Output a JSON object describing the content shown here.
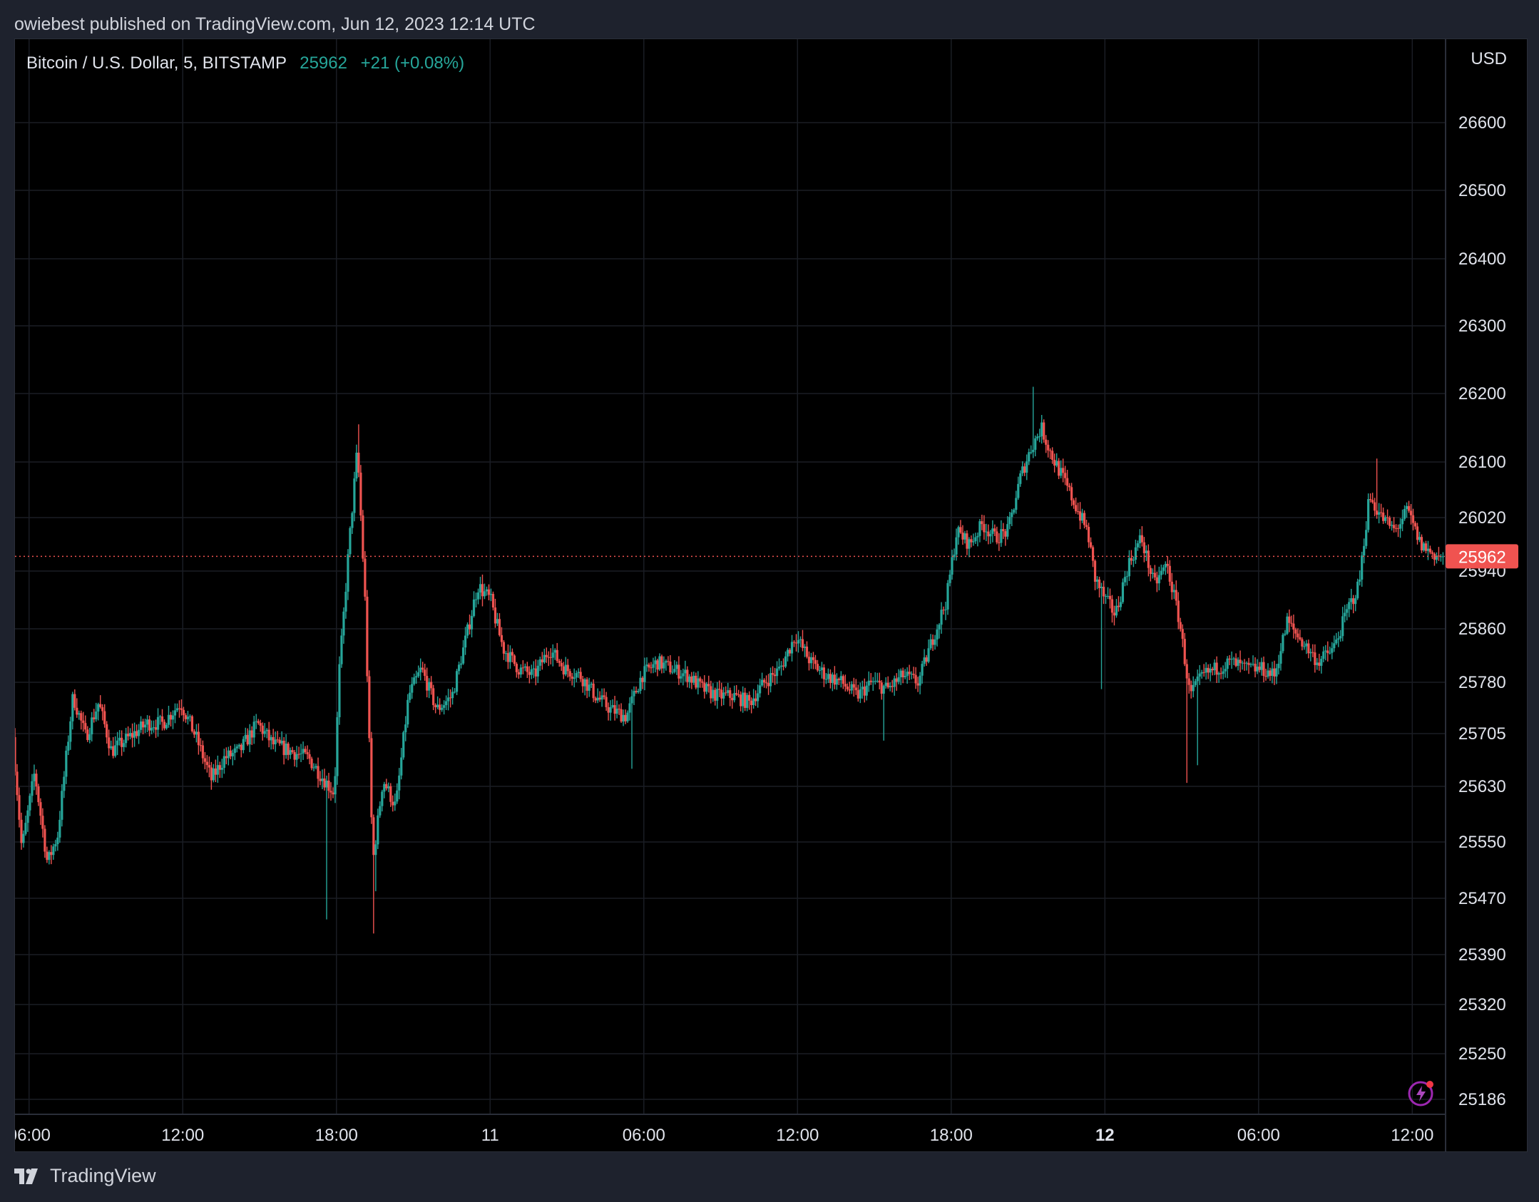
{
  "header": {
    "text": "owiebest published on TradingView.com, Jun 12, 2023 12:14 UTC"
  },
  "legend": {
    "symbol": "Bitcoin / U.S. Dollar, 5, BITSTAMP",
    "last": "25962",
    "change": "+21 (+0.08%)"
  },
  "price_axis": {
    "currency": "USD"
  },
  "footer": {
    "brand": "TradingView"
  },
  "icons": {
    "logo": "tradingview-logo-icon",
    "lightning": "lightning-icon"
  },
  "colors": {
    "up": "#26a69a",
    "down": "#ef5350",
    "background": "#000000",
    "panel": "#1e222d",
    "grid": "#1a1d24",
    "last_price_badge": "#f05350"
  },
  "chart_data": {
    "type": "candlestick",
    "title": "Bitcoin / U.S. Dollar, 5, BITSTAMP",
    "interval_minutes": 5,
    "last_price": 25962,
    "ylim": [
      25160,
      26700
    ],
    "y_ticks": [
      26600,
      26500,
      26400,
      26300,
      26200,
      26100,
      26020,
      25940,
      25860,
      25780,
      25705,
      25630,
      25550,
      25470,
      25390,
      25320,
      25250,
      25186
    ],
    "x_ticks": [
      {
        "label": "06:00",
        "t": 0
      },
      {
        "label": "12:00",
        "t": 6
      },
      {
        "label": "18:00",
        "t": 12
      },
      {
        "label": "11",
        "t": 18
      },
      {
        "label": "06:00",
        "t": 24
      },
      {
        "label": "12:00",
        "t": 30
      },
      {
        "label": "18:00",
        "t": 36
      },
      {
        "label": "12",
        "t": 42,
        "bold": true
      },
      {
        "label": "06:00",
        "t": 48
      },
      {
        "label": "12:00",
        "t": 54
      }
    ],
    "x_range_hours": [
      -0.55,
      55.3
    ],
    "price_path": [
      [
        -0.55,
        25700
      ],
      [
        -0.2,
        25540
      ],
      [
        0.3,
        25650
      ],
      [
        0.8,
        25520
      ],
      [
        1.2,
        25560
      ],
      [
        1.8,
        25760
      ],
      [
        2.3,
        25700
      ],
      [
        2.8,
        25750
      ],
      [
        3.3,
        25680
      ],
      [
        4,
        25700
      ],
      [
        4.7,
        25720
      ],
      [
        5.3,
        25720
      ],
      [
        6,
        25750
      ],
      [
        6.6,
        25700
      ],
      [
        7.2,
        25640
      ],
      [
        7.7,
        25670
      ],
      [
        8.3,
        25680
      ],
      [
        9,
        25720
      ],
      [
        9.6,
        25690
      ],
      [
        10.3,
        25680
      ],
      [
        11,
        25670
      ],
      [
        11.6,
        25640
      ],
      [
        12,
        25620
      ],
      [
        12.2,
        25800
      ],
      [
        12.6,
        25990
      ],
      [
        12.9,
        26120
      ],
      [
        13.2,
        25900
      ],
      [
        13.5,
        25520
      ],
      [
        13.9,
        25640
      ],
      [
        14.4,
        25600
      ],
      [
        14.9,
        25760
      ],
      [
        15.4,
        25800
      ],
      [
        16,
        25740
      ],
      [
        16.6,
        25760
      ],
      [
        17.1,
        25840
      ],
      [
        17.6,
        25920
      ],
      [
        18.1,
        25900
      ],
      [
        18.6,
        25830
      ],
      [
        19.2,
        25800
      ],
      [
        19.8,
        25790
      ],
      [
        20.4,
        25830
      ],
      [
        21,
        25800
      ],
      [
        21.6,
        25790
      ],
      [
        22.2,
        25760
      ],
      [
        22.8,
        25740
      ],
      [
        23.4,
        25730
      ],
      [
        24,
        25790
      ],
      [
        24.6,
        25810
      ],
      [
        25.2,
        25800
      ],
      [
        25.8,
        25790
      ],
      [
        26.4,
        25770
      ],
      [
        27,
        25760
      ],
      [
        27.6,
        25760
      ],
      [
        28.2,
        25750
      ],
      [
        28.8,
        25780
      ],
      [
        29.4,
        25800
      ],
      [
        30,
        25850
      ],
      [
        30.6,
        25810
      ],
      [
        31.2,
        25790
      ],
      [
        31.8,
        25780
      ],
      [
        32.4,
        25760
      ],
      [
        33,
        25780
      ],
      [
        33.6,
        25770
      ],
      [
        34.2,
        25790
      ],
      [
        34.8,
        25780
      ],
      [
        35.4,
        25850
      ],
      [
        35.9,
        25900
      ],
      [
        36.3,
        26000
      ],
      [
        36.8,
        25980
      ],
      [
        37.3,
        26010
      ],
      [
        37.8,
        25990
      ],
      [
        38.3,
        26000
      ],
      [
        38.8,
        26080
      ],
      [
        39.2,
        26120
      ],
      [
        39.6,
        26150
      ],
      [
        40,
        26110
      ],
      [
        40.4,
        26080
      ],
      [
        40.9,
        26040
      ],
      [
        41.4,
        26000
      ],
      [
        41.7,
        25930
      ],
      [
        42.1,
        25900
      ],
      [
        42.5,
        25880
      ],
      [
        43,
        25950
      ],
      [
        43.5,
        25990
      ],
      [
        44,
        25920
      ],
      [
        44.5,
        25950
      ],
      [
        45,
        25870
      ],
      [
        45.4,
        25760
      ],
      [
        45.9,
        25790
      ],
      [
        46.4,
        25800
      ],
      [
        47,
        25810
      ],
      [
        47.6,
        25800
      ],
      [
        48.2,
        25800
      ],
      [
        48.7,
        25790
      ],
      [
        49.2,
        25870
      ],
      [
        49.8,
        25840
      ],
      [
        50.4,
        25810
      ],
      [
        51,
        25830
      ],
      [
        51.6,
        25890
      ],
      [
        52,
        25920
      ],
      [
        52.4,
        26050
      ],
      [
        52.9,
        26020
      ],
      [
        53.4,
        26000
      ],
      [
        53.9,
        26030
      ],
      [
        54.4,
        25980
      ],
      [
        54.9,
        25965
      ],
      [
        55.2,
        25962
      ]
    ],
    "spikes": [
      {
        "t": 11.6,
        "low": 25440
      },
      {
        "t": 12.85,
        "high": 26155
      },
      {
        "t": 13.45,
        "low": 25420
      },
      {
        "t": 13.55,
        "low": 25480
      },
      {
        "t": 23.5,
        "low": 25655
      },
      {
        "t": 33.4,
        "low": 25695
      },
      {
        "t": 39.2,
        "high": 26210
      },
      {
        "t": 41.9,
        "low": 25770
      },
      {
        "t": 45.2,
        "low": 25635
      },
      {
        "t": 45.6,
        "low": 25660
      },
      {
        "t": 52.6,
        "high": 26105
      }
    ]
  }
}
